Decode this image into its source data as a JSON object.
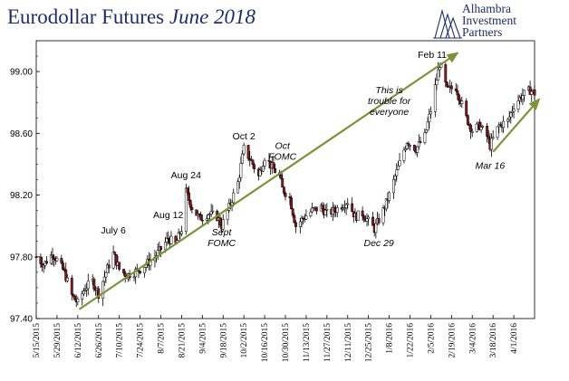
{
  "header": {
    "title_main": "Eurodollar Futures",
    "title_em": "June 2018"
  },
  "logo": {
    "line1": "Alhambra",
    "line2": "Investment",
    "line3": "Partners"
  },
  "colors": {
    "title": "#1f2d6b",
    "trend_arrow": "#7a9438",
    "candle_up": "#ffffff",
    "candle_down": "#8b1a1a",
    "wick": "#000000"
  },
  "chart_data": {
    "type": "candlestick",
    "title": "Eurodollar Futures June 2018",
    "xlabel": "",
    "ylabel": "",
    "ylim": [
      97.4,
      99.2
    ],
    "yticks": [
      97.4,
      97.8,
      98.2,
      98.6,
      99.0
    ],
    "ytick_labels": [
      "97.40",
      "97.80",
      "98.20",
      "98.60",
      "99.00"
    ],
    "x_start": "2015-05-15",
    "x_end": "2016-04-15",
    "xticks": [
      "2015-05-15",
      "2015-05-29",
      "2015-06-12",
      "2015-06-26",
      "2015-07-10",
      "2015-07-24",
      "2015-08-07",
      "2015-08-21",
      "2015-09-04",
      "2015-09-18",
      "2015-10-02",
      "2015-10-16",
      "2015-10-30",
      "2015-11-13",
      "2015-11-27",
      "2015-12-11",
      "2015-12-25",
      "2016-01-08",
      "2016-01-22",
      "2016-02-05",
      "2016-02-19",
      "2016-03-04",
      "2016-03-18",
      "2016-04-01"
    ],
    "xtick_labels": [
      "5/15/2015",
      "5/29/2015",
      "6/12/2015",
      "6/26/2015",
      "7/10/2015",
      "7/24/2015",
      "8/7/2015",
      "8/21/2015",
      "9/4/2015",
      "9/18/2015",
      "10/2/2015",
      "10/16/2015",
      "10/30/2015",
      "11/13/2015",
      "11/27/2015",
      "12/11/2015",
      "12/25/2015",
      "1/8/2016",
      "1/22/2016",
      "2/5/2016",
      "2/19/2016",
      "3/4/2016",
      "3/18/2016",
      "4/1/2016"
    ],
    "grid": false,
    "series": [
      {
        "values": [
          [
            "2015-05-15",
            97.8
          ],
          [
            "2015-05-20",
            97.75
          ],
          [
            "2015-05-26",
            97.82
          ],
          [
            "2015-05-29",
            97.78
          ],
          [
            "2015-06-03",
            97.7
          ],
          [
            "2015-06-08",
            97.55
          ],
          [
            "2015-06-12",
            97.5
          ],
          [
            "2015-06-17",
            97.6
          ],
          [
            "2015-06-22",
            97.64
          ],
          [
            "2015-06-26",
            97.56
          ],
          [
            "2015-07-01",
            97.7
          ],
          [
            "2015-07-06",
            97.82
          ],
          [
            "2015-07-10",
            97.72
          ],
          [
            "2015-07-15",
            97.68
          ],
          [
            "2015-07-20",
            97.7
          ],
          [
            "2015-07-24",
            97.72
          ],
          [
            "2015-07-29",
            97.76
          ],
          [
            "2015-08-03",
            97.8
          ],
          [
            "2015-08-07",
            97.85
          ],
          [
            "2015-08-12",
            97.92
          ],
          [
            "2015-08-17",
            97.88
          ],
          [
            "2015-08-21",
            97.98
          ],
          [
            "2015-08-24",
            98.22
          ],
          [
            "2015-08-28",
            98.12
          ],
          [
            "2015-09-02",
            98.05
          ],
          [
            "2015-09-08",
            98.08
          ],
          [
            "2015-09-14",
            98.06
          ],
          [
            "2015-09-17",
            98.0
          ],
          [
            "2015-09-22",
            98.12
          ],
          [
            "2015-09-28",
            98.28
          ],
          [
            "2015-10-02",
            98.5
          ],
          [
            "2015-10-07",
            98.42
          ],
          [
            "2015-10-12",
            98.32
          ],
          [
            "2015-10-16",
            98.45
          ],
          [
            "2015-10-21",
            98.38
          ],
          [
            "2015-10-26",
            98.32
          ],
          [
            "2015-10-28",
            98.24
          ],
          [
            "2015-11-02",
            98.18
          ],
          [
            "2015-11-06",
            98.0
          ],
          [
            "2015-11-11",
            98.05
          ],
          [
            "2015-11-17",
            98.1
          ],
          [
            "2015-11-23",
            98.12
          ],
          [
            "2015-11-27",
            98.08
          ],
          [
            "2015-12-02",
            98.1
          ],
          [
            "2015-12-08",
            98.14
          ],
          [
            "2015-12-11",
            98.16
          ],
          [
            "2015-12-16",
            98.06
          ],
          [
            "2015-12-21",
            98.08
          ],
          [
            "2015-12-29",
            97.98
          ],
          [
            "2016-01-04",
            98.1
          ],
          [
            "2016-01-08",
            98.2
          ],
          [
            "2016-01-13",
            98.35
          ],
          [
            "2016-01-20",
            98.55
          ],
          [
            "2016-01-26",
            98.5
          ],
          [
            "2016-02-01",
            98.58
          ],
          [
            "2016-02-05",
            98.75
          ],
          [
            "2016-02-11",
            99.05
          ],
          [
            "2016-02-16",
            98.88
          ],
          [
            "2016-02-22",
            98.9
          ],
          [
            "2016-02-29",
            98.7
          ],
          [
            "2016-03-04",
            98.62
          ],
          [
            "2016-03-09",
            98.65
          ],
          [
            "2016-03-14",
            98.58
          ],
          [
            "2016-03-16",
            98.52
          ],
          [
            "2016-03-22",
            98.65
          ],
          [
            "2016-03-28",
            98.68
          ],
          [
            "2016-04-01",
            98.78
          ],
          [
            "2016-04-06",
            98.84
          ],
          [
            "2016-04-12",
            98.88
          ],
          [
            "2016-04-15",
            98.86
          ]
        ]
      }
    ],
    "trend_lines": [
      {
        "from": [
          "2015-06-13",
          97.46
        ],
        "to": [
          "2016-02-23",
          99.12
        ]
      },
      {
        "from": [
          "2016-03-18",
          98.48
        ],
        "to": [
          "2016-04-18",
          98.82
        ]
      }
    ],
    "annotations": [
      {
        "lines": [
          "July 6"
        ],
        "italic": false,
        "x": "2015-07-06",
        "y": 97.95
      },
      {
        "lines": [
          "Aug 12"
        ],
        "italic": false,
        "x": "2015-08-12",
        "y": 98.05
      },
      {
        "lines": [
          "Aug 24"
        ],
        "italic": false,
        "x": "2015-08-24",
        "y": 98.31
      },
      {
        "lines": [
          "Sept",
          "FOMC"
        ],
        "italic": true,
        "x": "2015-09-17",
        "y": 97.94
      },
      {
        "lines": [
          "Oct 2"
        ],
        "italic": false,
        "x": "2015-10-02",
        "y": 98.56
      },
      {
        "lines": [
          "Oct",
          "FOMC"
        ],
        "italic": true,
        "x": "2015-10-28",
        "y": 98.5
      },
      {
        "lines": [
          "This is",
          "trouble for",
          "everyone"
        ],
        "italic": true,
        "x": "2016-01-08",
        "y": 98.86
      },
      {
        "lines": [
          "Dec 29"
        ],
        "italic": true,
        "x": "2016-01-01",
        "y": 97.87
      },
      {
        "lines": [
          "Feb 11"
        ],
        "italic": false,
        "x": "2016-02-06",
        "y": 99.09
      },
      {
        "lines": [
          "Mar 16"
        ],
        "italic": true,
        "x": "2016-03-16",
        "y": 98.37
      }
    ]
  }
}
